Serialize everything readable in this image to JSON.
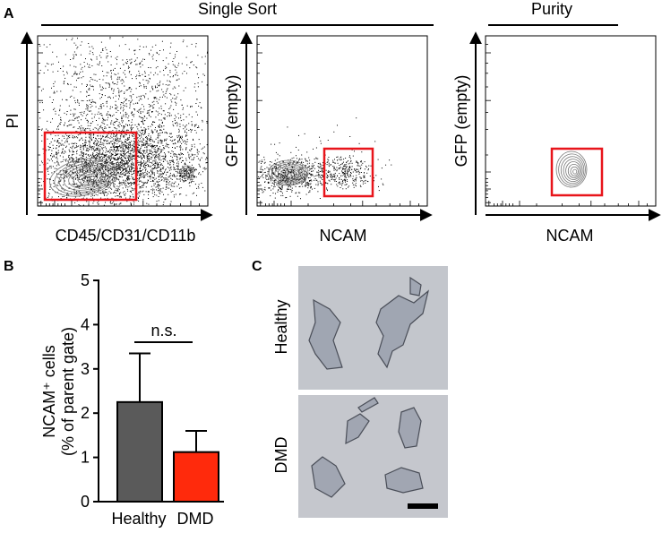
{
  "panel_a": {
    "letter": "A",
    "section_titles": {
      "single_sort": "Single Sort",
      "purity": "Purity"
    },
    "plot1": {
      "xlabel": "CD45/CD31/CD11b",
      "ylabel": "PI"
    },
    "plot2": {
      "xlabel": "NCAM",
      "ylabel": "GFP (empty)"
    },
    "plot3": {
      "xlabel": "NCAM",
      "ylabel": "GFP (empty)"
    },
    "gate_color": "#e8151b"
  },
  "panel_b": {
    "letter": "B",
    "significance": "n.s."
  },
  "panel_c": {
    "letter": "C",
    "row_labels": [
      "Healthy",
      "DMD"
    ]
  },
  "chart_data": {
    "type": "bar",
    "categories": [
      "Healthy",
      "DMD"
    ],
    "values": [
      2.25,
      1.12
    ],
    "errors": [
      1.1,
      0.48
    ],
    "bar_colors": [
      "#5a5a5a",
      "#ff2a0c"
    ],
    "ylabel_line1": "NCAM⁺ cells",
    "ylabel_line2": "(% of parent gate)",
    "xlabel": "",
    "ylim": [
      0,
      5
    ],
    "yticks": [
      0,
      1,
      2,
      3,
      4,
      5
    ]
  }
}
